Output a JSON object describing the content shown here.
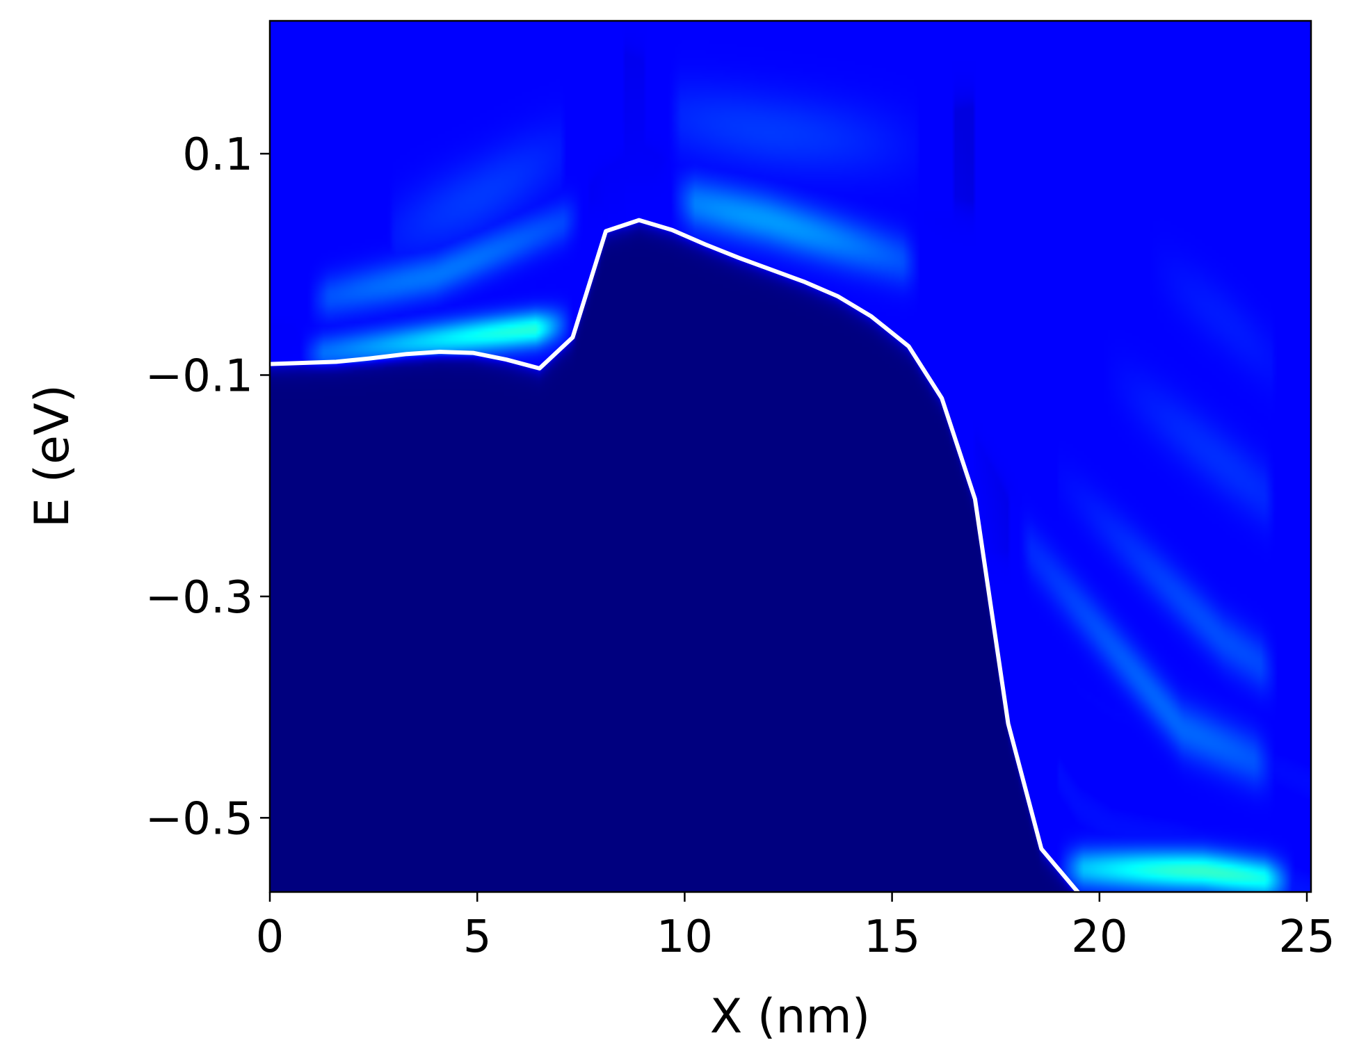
{
  "chart_data": {
    "type": "heatmap",
    "title": "",
    "xlabel": "X (nm)",
    "ylabel": "E (eV)",
    "xlim": [
      0,
      25.1
    ],
    "ylim": [
      -0.567,
      0.22
    ],
    "x_ticks": [
      {
        "value": 0,
        "label": "0"
      },
      {
        "value": 5,
        "label": "5"
      },
      {
        "value": 10,
        "label": "10"
      },
      {
        "value": 15,
        "label": "15"
      },
      {
        "value": 20,
        "label": "20"
      },
      {
        "value": 25,
        "label": "25"
      }
    ],
    "y_ticks": [
      {
        "value": 0.1,
        "label": "0.1"
      },
      {
        "value": -0.1,
        "label": "−0.1"
      },
      {
        "value": -0.3,
        "label": "−0.3"
      },
      {
        "value": -0.5,
        "label": "−0.5"
      }
    ],
    "grid": false,
    "colormap": "jet",
    "colormap_colors": [
      "#00007f",
      "#0000ff",
      "#007fff",
      "#00ffff",
      "#7fff7f"
    ],
    "line_color": "#ffffff",
    "line_series": {
      "x": [
        0,
        1.6,
        2.4,
        3.3,
        4.1,
        4.9,
        5.7,
        6.5,
        7.3,
        8.1,
        8.9,
        9.7,
        10.5,
        11.3,
        12.1,
        12.9,
        13.7,
        14.5,
        15.4,
        16.2,
        17.0,
        17.8,
        18.6,
        19.5,
        20.3,
        21.1,
        21.9,
        22.7,
        23.5,
        24.3,
        25.1
      ],
      "y": [
        -0.09,
        -0.088,
        -0.085,
        -0.081,
        -0.079,
        -0.08,
        -0.086,
        -0.094,
        -0.066,
        0.03,
        0.04,
        0.031,
        0.018,
        0.006,
        -0.005,
        -0.016,
        -0.029,
        -0.047,
        -0.074,
        -0.121,
        -0.212,
        -0.415,
        -0.528,
        -0.568,
        -0.578,
        -0.575,
        -0.57,
        -0.569,
        -0.572,
        -0.576,
        -0.578
      ]
    },
    "bright_bands": [
      {
        "x_start": 0.0,
        "y_start": -0.085,
        "x_peak": 6.5,
        "y_peak": -0.058,
        "x_end": 7.7,
        "y_end": -0.05,
        "width_ev": 0.016,
        "peak_level": 0.82
      },
      {
        "x_start": 0.0,
        "y_start": -0.04,
        "x_peak": 4.0,
        "y_peak": -0.01,
        "x_end": 8.5,
        "y_end": 0.06,
        "width_ev": 0.02,
        "peak_level": 0.48
      },
      {
        "x_start": 2.0,
        "y_start": 0.01,
        "x_peak": 5.0,
        "y_peak": 0.06,
        "x_end": 8.0,
        "y_end": 0.12,
        "width_ev": 0.035,
        "peak_level": 0.36
      },
      {
        "x_start": 9.0,
        "y_start": 0.065,
        "x_peak": 12.0,
        "y_peak": 0.04,
        "x_end": 16.5,
        "y_end": -0.01,
        "width_ev": 0.024,
        "peak_level": 0.55
      },
      {
        "x_start": 8.5,
        "y_start": 0.14,
        "x_peak": 12.0,
        "y_peak": 0.12,
        "x_end": 17.0,
        "y_end": 0.1,
        "width_ev": 0.035,
        "peak_level": 0.36
      },
      {
        "x_start": 18.5,
        "y_start": -0.545,
        "x_peak": 22.5,
        "y_peak": -0.548,
        "x_end": 25.1,
        "y_end": -0.56,
        "width_ev": 0.018,
        "peak_level": 0.85
      },
      {
        "x_start": 17.0,
        "y_start": -0.2,
        "x_peak": 22.0,
        "y_peak": -0.42,
        "x_end": 25.1,
        "y_end": -0.47,
        "width_ev": 0.025,
        "peak_level": 0.45
      },
      {
        "x_start": 17.8,
        "y_start": -0.15,
        "x_peak": 23.0,
        "y_peak": -0.34,
        "x_end": 25.1,
        "y_end": -0.39,
        "width_ev": 0.025,
        "peak_level": 0.4
      },
      {
        "x_start": 18.5,
        "y_start": -0.05,
        "x_peak": 23.0,
        "y_peak": -0.18,
        "x_end": 25.1,
        "y_end": -0.24,
        "width_ev": 0.03,
        "peak_level": 0.34
      },
      {
        "x_start": 19.5,
        "y_start": 0.05,
        "x_peak": 23.0,
        "y_peak": -0.05,
        "x_end": 25.1,
        "y_end": -0.12,
        "width_ev": 0.03,
        "peak_level": 0.3
      }
    ],
    "background_level_above_line": 0.25,
    "background_level_below_line": 0.0
  }
}
